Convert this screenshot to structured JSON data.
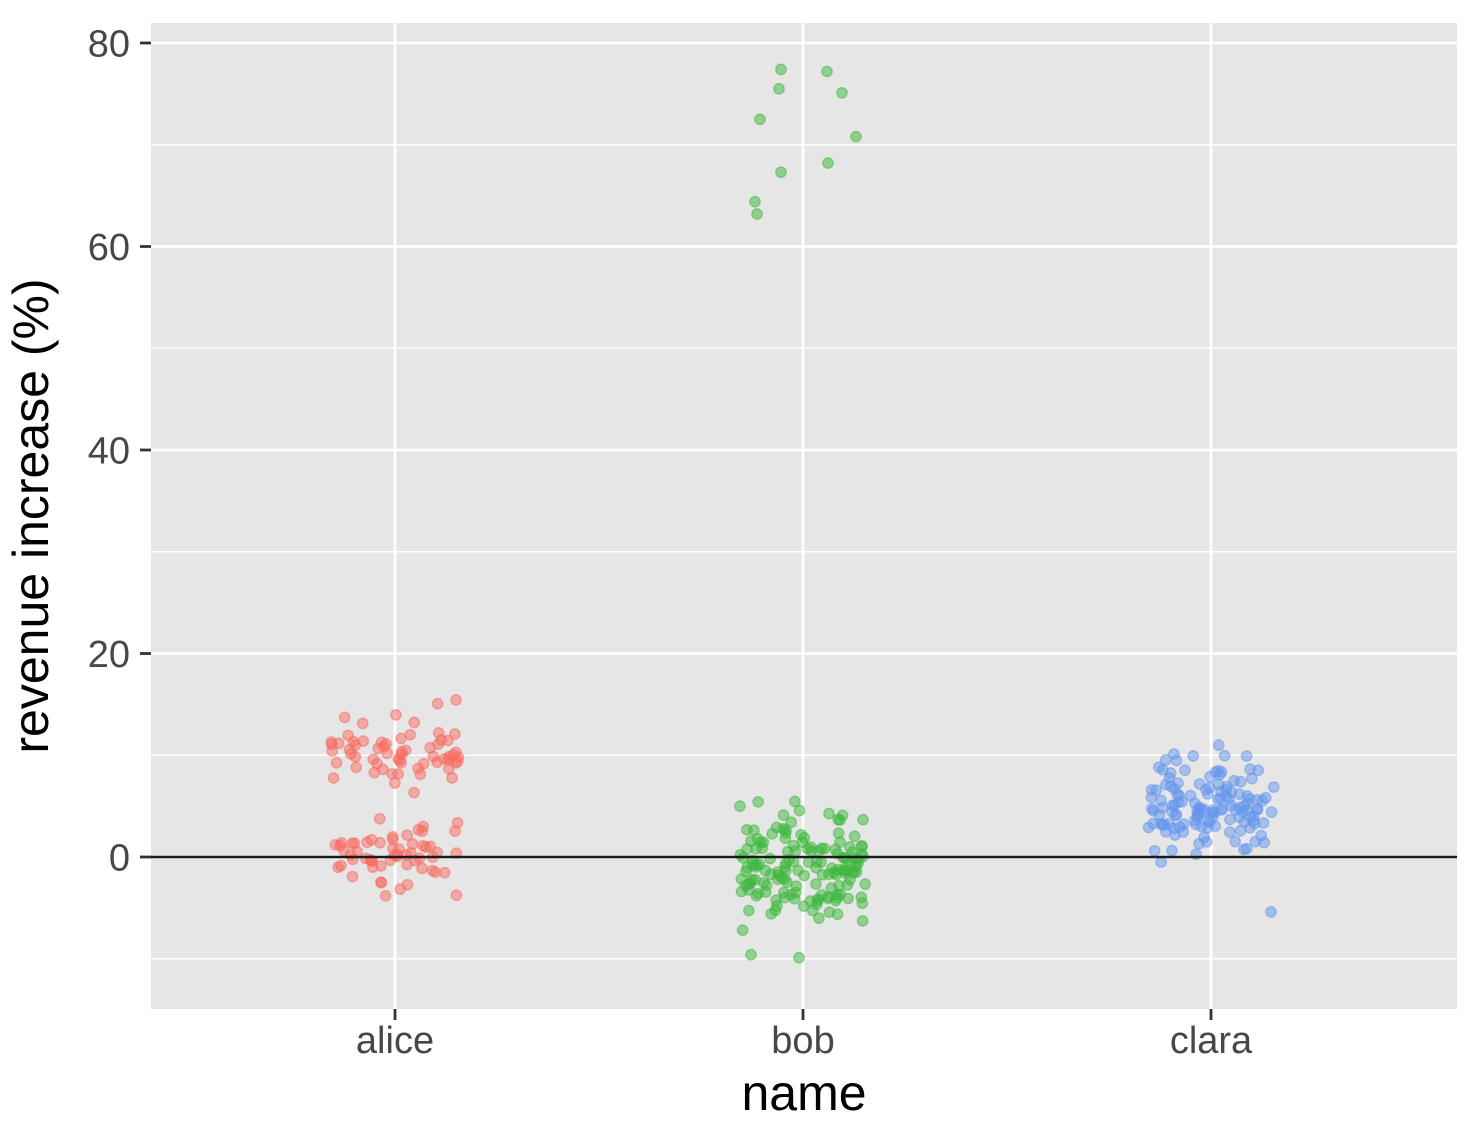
{
  "figure": {
    "background": "#FFFFFF",
    "panel_bg": "#E6E6E6",
    "grid_color": "#FFFFFF",
    "tick_color": "#333333",
    "tick_label_color": "#474747",
    "title_color": "#000000",
    "zero_line_color": "#1A1A1A"
  },
  "chart_data": {
    "type": "scatter",
    "subtype": "jittered-strip-plot",
    "title": "",
    "xlabel": "name",
    "ylabel": "revenue increase (%)",
    "categories": [
      "alice",
      "bob",
      "clara"
    ],
    "yticks": [
      0,
      20,
      40,
      60,
      80
    ],
    "yticks_minor": [
      -10,
      10,
      30,
      50,
      70
    ],
    "ylim": [
      -14.9,
      82.3
    ],
    "grid": true,
    "legend": "none",
    "zero_reference_line": 0,
    "point_alpha": 0.5,
    "series": [
      {
        "name": "alice",
        "color": "#F7695F",
        "seed": 7,
        "n_total": 120,
        "clusters": [
          {
            "n": 62,
            "mean": 10.2,
            "sd": 1.9,
            "min": 5.2,
            "max": 15.5
          },
          {
            "n": 58,
            "mean": 0.3,
            "sd": 1.8,
            "min": -4.3,
            "max": 3.9
          }
        ],
        "outlier_points": []
      },
      {
        "name": "bob",
        "color": "#3CB83C",
        "seed": 13,
        "n_total": 162,
        "clusters": [
          {
            "n": 150,
            "mean": -1.0,
            "sd": 2.5,
            "min": -8.6,
            "max": 6.4
          }
        ],
        "outlier_points": [
          [
            -22,
            77.4
          ],
          [
            24,
            77.2
          ],
          [
            -24,
            75.5
          ],
          [
            39,
            75.1
          ],
          [
            -43,
            72.5
          ],
          [
            53,
            70.8
          ],
          [
            25,
            68.2
          ],
          [
            -22,
            67.3
          ],
          [
            -48,
            64.4
          ],
          [
            -46,
            63.2
          ],
          [
            -52,
            -9.6
          ],
          [
            -4,
            -9.9
          ]
        ]
      },
      {
        "name": "clara",
        "color": "#6495ED",
        "seed": 21,
        "n_total": 133,
        "clusters": [
          {
            "n": 132,
            "mean": 5.4,
            "sd": 2.4,
            "min": -1.6,
            "max": 11.2
          }
        ],
        "outlier_points": [
          [
            60,
            -5.4
          ]
        ]
      }
    ]
  }
}
